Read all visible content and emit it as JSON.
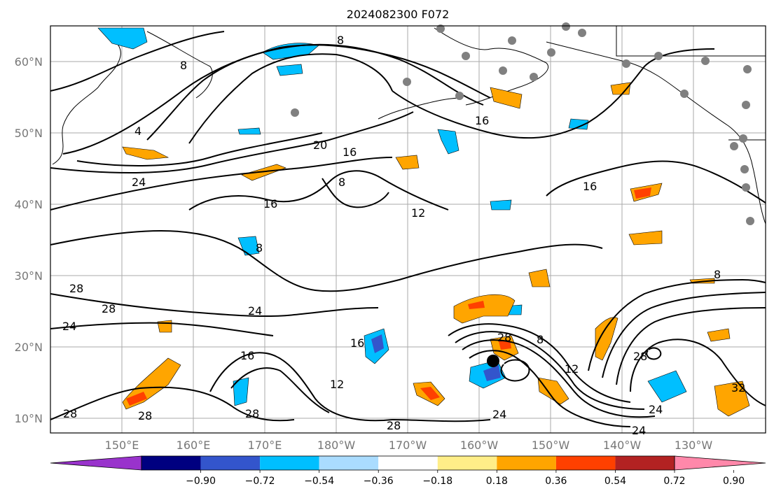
{
  "title": "2024082300 F072",
  "axes": {
    "lon_labels": [
      "150°E",
      "160°E",
      "170°E",
      "180°W",
      "170°W",
      "160°W",
      "150°W",
      "140°W",
      "130°W"
    ],
    "lat_labels": [
      "10°N",
      "20°N",
      "30°N",
      "40°N",
      "50°N",
      "60°N"
    ]
  },
  "colorbar": {
    "ticks": [
      "−0.90",
      "−0.72",
      "−0.54",
      "−0.36",
      "−0.18",
      "0.18",
      "0.36",
      "0.54",
      "0.72",
      "0.90"
    ],
    "colors": [
      "#9933cc",
      "#000080",
      "#3355cc",
      "#00bfff",
      "#aadcff",
      "#ffffff",
      "#ffee88",
      "#ffa500",
      "#ff4000",
      "#b22222",
      "#ff88aa"
    ]
  },
  "contour_labels": [
    "8",
    "8",
    "4",
    "20",
    "16",
    "16",
    "24",
    "28",
    "16",
    "8",
    "12",
    "16",
    "8",
    "24",
    "28",
    "28",
    "24",
    "16",
    "16",
    "12",
    "28",
    "28",
    "28",
    "24",
    "8",
    "12",
    "28",
    "24",
    "32",
    "8",
    "28",
    "24"
  ],
  "storm_marker": "black-dot"
}
